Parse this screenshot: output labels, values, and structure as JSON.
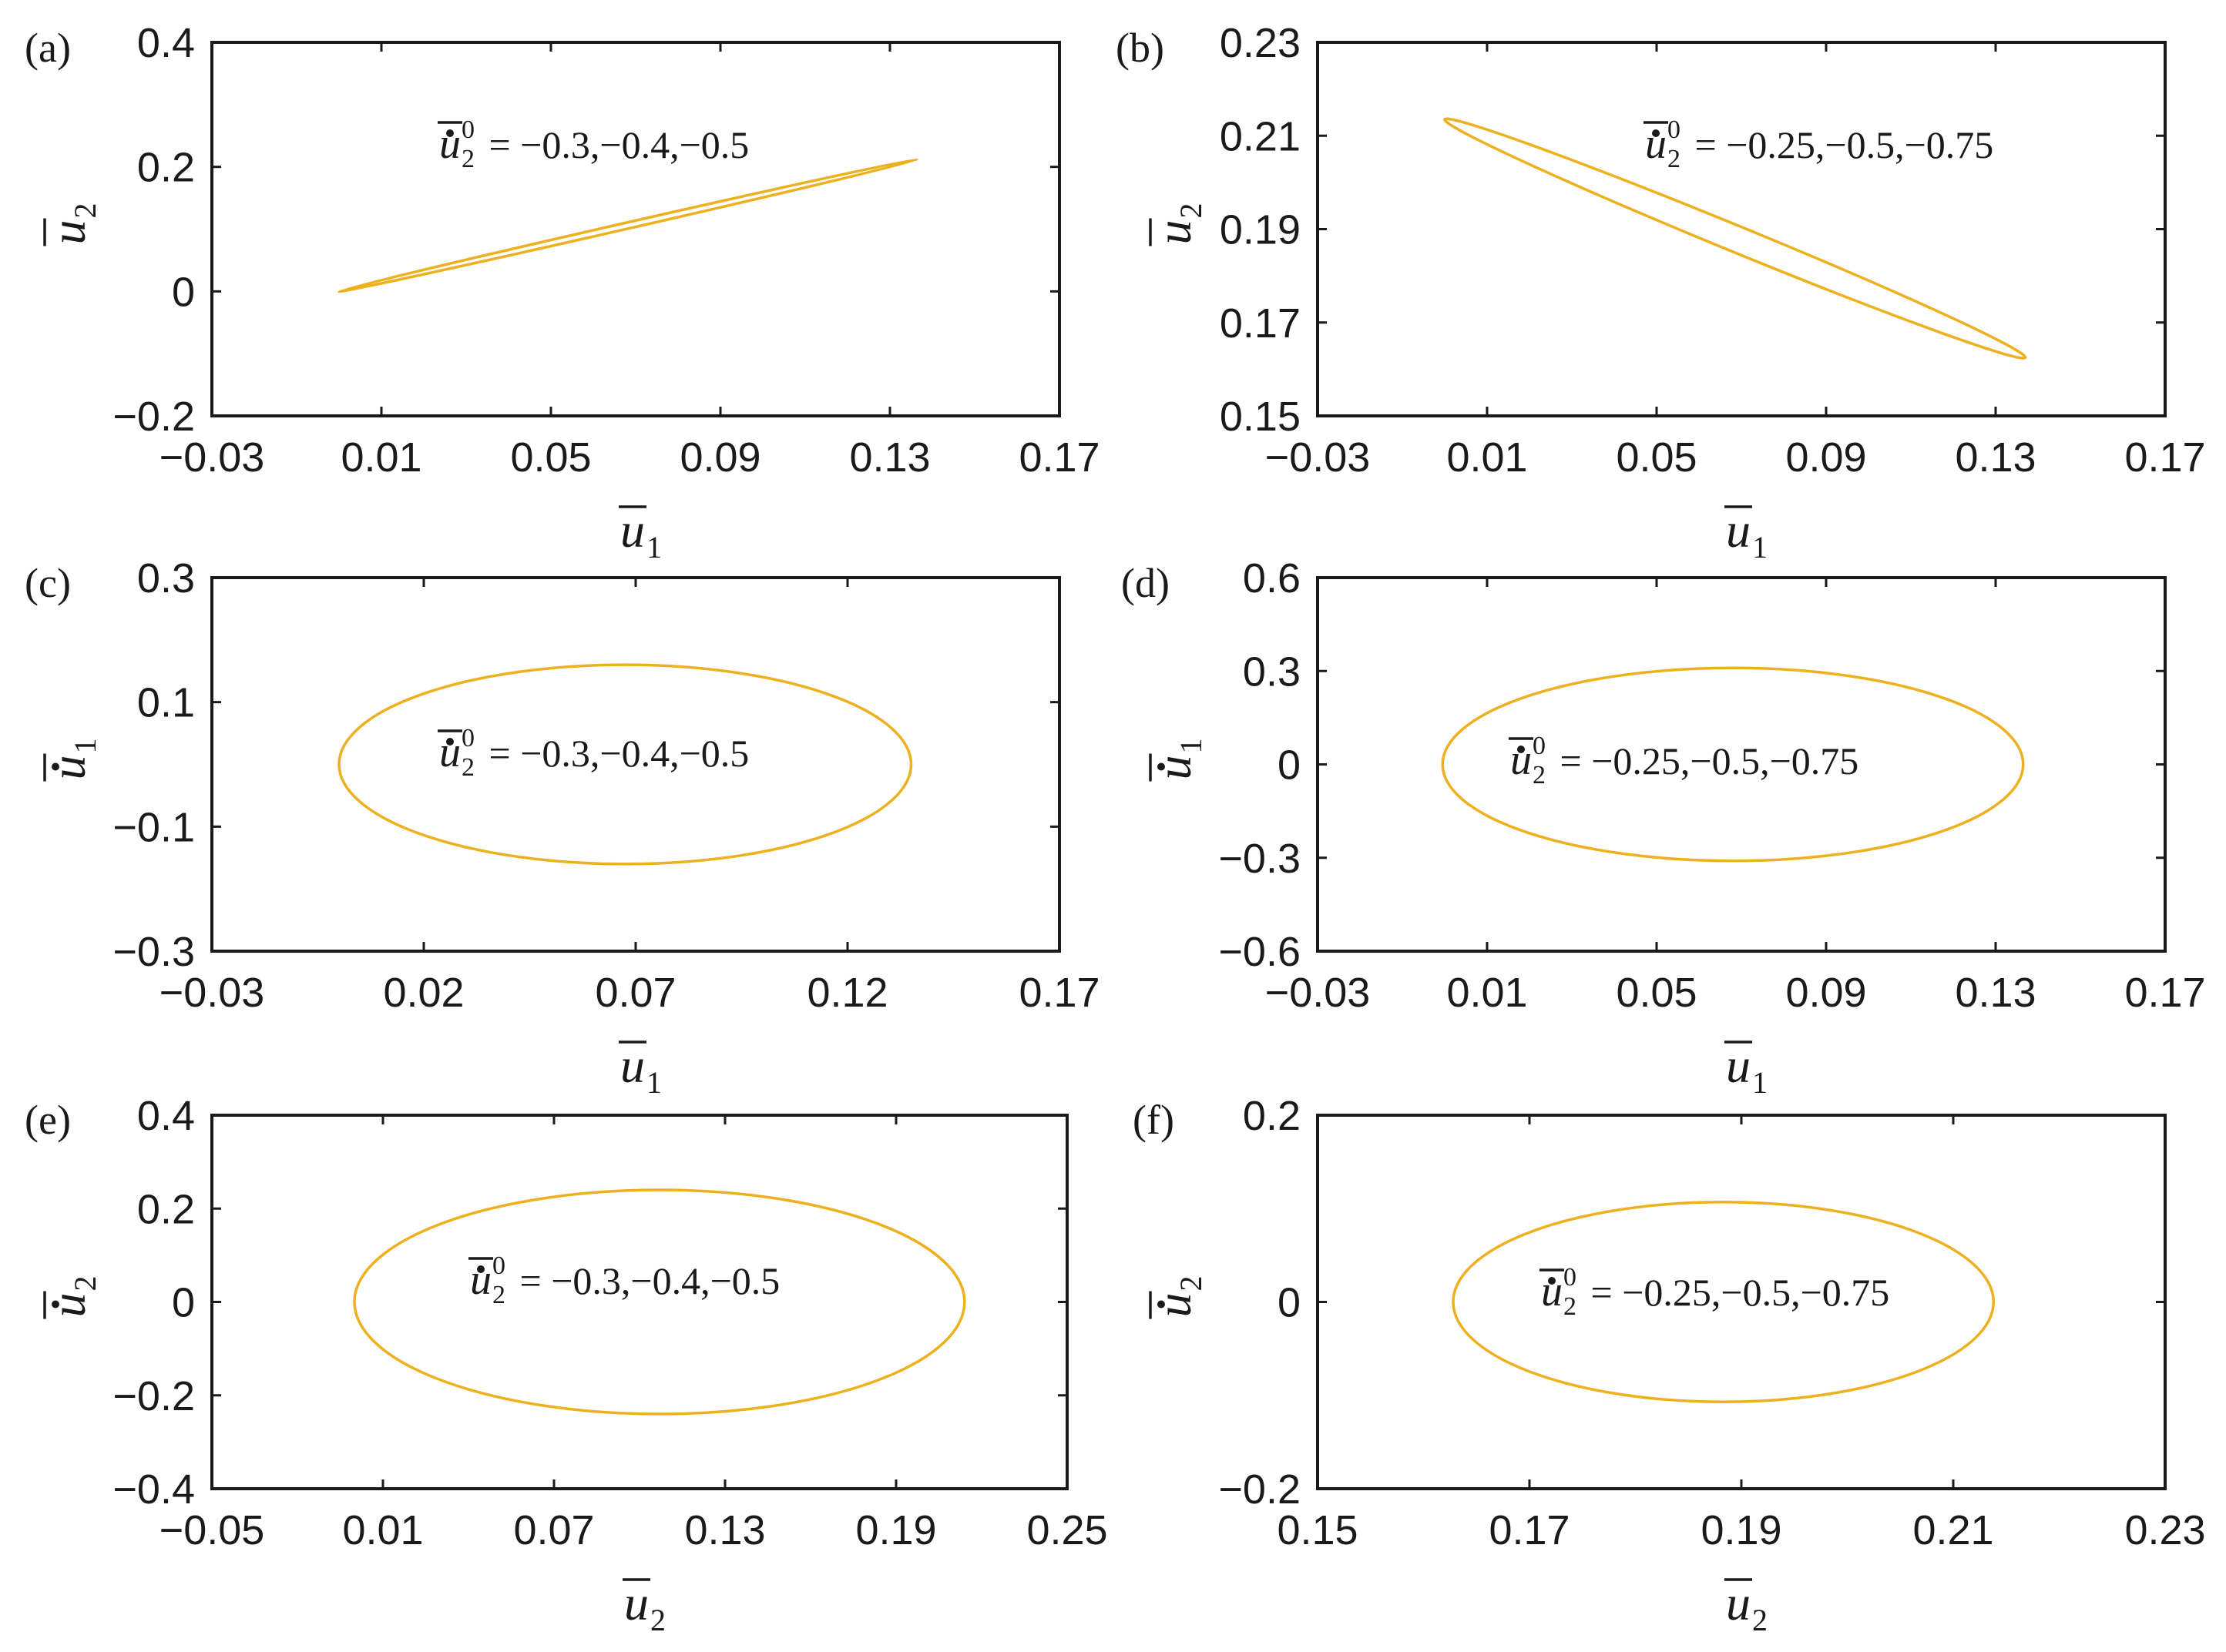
{
  "figure": {
    "series_color": "#EDB120"
  },
  "chart_data": [
    {
      "panel": "(a)",
      "type": "line",
      "xlabel": {
        "symbol": "u",
        "sub": "1",
        "dot": false
      },
      "ylabel": {
        "symbol": "u",
        "sub": "2",
        "dot": false
      },
      "xlim": [
        -0.03,
        0.17
      ],
      "ylim": [
        -0.2,
        0.4
      ],
      "xticks": [
        -0.03,
        0.01,
        0.05,
        0.09,
        0.13,
        0.17
      ],
      "xtick_labels": [
        "−0.03",
        "0.01",
        "0.05",
        "0.09",
        "0.13",
        "0.17"
      ],
      "yticks": [
        -0.2,
        0,
        0.2,
        0.4
      ],
      "ytick_labels": [
        "−0.2",
        "0",
        "0.2",
        "0.4"
      ],
      "annotation": {
        "symbol": "u",
        "sub": "2",
        "sup": "0",
        "text": " = −0.3,−0.4,−0.5"
      },
      "curve": {
        "shape": "thin-ellipse",
        "point_a": [
          0.0,
          0.0
        ],
        "point_b": [
          0.1365,
          0.212
        ],
        "half_width": 0.0035
      }
    },
    {
      "panel": "(b)",
      "type": "line",
      "xlabel": {
        "symbol": "u",
        "sub": "1",
        "dot": false
      },
      "ylabel": {
        "symbol": "u",
        "sub": "2",
        "dot": false
      },
      "xlim": [
        -0.03,
        0.17
      ],
      "ylim": [
        0.15,
        0.23
      ],
      "xticks": [
        -0.03,
        0.01,
        0.05,
        0.09,
        0.13,
        0.17
      ],
      "xtick_labels": [
        "−0.03",
        "0.01",
        "0.05",
        "0.09",
        "0.13",
        "0.17"
      ],
      "yticks": [
        0.15,
        0.17,
        0.19,
        0.21,
        0.23
      ],
      "ytick_labels": [
        "0.15",
        "0.17",
        "0.19",
        "0.21",
        "0.23"
      ],
      "annotation": {
        "symbol": "u",
        "sub": "2",
        "sup": "0",
        "text": " = −0.25,−0.5,−0.75"
      },
      "curve": {
        "shape": "thin-ellipse",
        "point_a": [
          0.0,
          0.2135
        ],
        "point_b": [
          0.137,
          0.1625
        ],
        "half_width": 0.0028
      }
    },
    {
      "panel": "(c)",
      "type": "line",
      "xlabel": {
        "symbol": "u",
        "sub": "1",
        "dot": false
      },
      "ylabel": {
        "symbol": "u",
        "sub": "1",
        "dot": true
      },
      "xlim": [
        -0.03,
        0.17
      ],
      "ylim": [
        -0.3,
        0.3
      ],
      "xticks": [
        -0.03,
        0.02,
        0.07,
        0.12,
        0.17
      ],
      "xtick_labels": [
        "−0.03",
        "0.02",
        "0.07",
        "0.12",
        "0.17"
      ],
      "yticks": [
        -0.3,
        -0.1,
        0.1,
        0.3
      ],
      "ytick_labels": [
        "−0.3",
        "−0.1",
        "0.1",
        "0.3"
      ],
      "annotation": {
        "symbol": "u",
        "sub": "2",
        "sup": "0",
        "text": " = −0.3,−0.4,−0.5"
      },
      "curve": {
        "shape": "ellipse",
        "center": [
          0.0675,
          0.0
        ],
        "radius_x": 0.0675,
        "radius_y": 0.16
      }
    },
    {
      "panel": "(d)",
      "type": "line",
      "xlabel": {
        "symbol": "u",
        "sub": "1",
        "dot": false
      },
      "ylabel": {
        "symbol": "u",
        "sub": "1",
        "dot": true
      },
      "xlim": [
        -0.03,
        0.17
      ],
      "ylim": [
        -0.6,
        0.6
      ],
      "xticks": [
        -0.03,
        0.01,
        0.05,
        0.09,
        0.13,
        0.17
      ],
      "xtick_labels": [
        "−0.03",
        "0.01",
        "0.05",
        "0.09",
        "0.13",
        "0.17"
      ],
      "yticks": [
        -0.6,
        -0.3,
        0,
        0.3,
        0.6
      ],
      "ytick_labels": [
        "−0.6",
        "−0.3",
        "0",
        "0.3",
        "0.6"
      ],
      "annotation": {
        "symbol": "u",
        "sub": "2",
        "sup": "0",
        "text": " = −0.25,−0.5,−0.75"
      },
      "curve": {
        "shape": "ellipse",
        "center": [
          0.068,
          0.0
        ],
        "radius_x": 0.0685,
        "radius_y": 0.31
      }
    },
    {
      "panel": "(e)",
      "type": "line",
      "xlabel": {
        "symbol": "u",
        "sub": "2",
        "dot": false
      },
      "ylabel": {
        "symbol": "u",
        "sub": "2",
        "dot": true
      },
      "xlim": [
        -0.05,
        0.25
      ],
      "ylim": [
        -0.4,
        0.4
      ],
      "xticks": [
        -0.05,
        0.01,
        0.07,
        0.13,
        0.19,
        0.25
      ],
      "xtick_labels": [
        "−0.05",
        "0.01",
        "0.07",
        "0.13",
        "0.19",
        "0.25"
      ],
      "yticks": [
        -0.4,
        -0.2,
        0,
        0.2,
        0.4
      ],
      "ytick_labels": [
        "−0.4",
        "−0.2",
        "0",
        "0.2",
        "0.4"
      ],
      "annotation": {
        "symbol": "u",
        "sub": "2",
        "sup": "0",
        "text": " = −0.3,−0.4,−0.5"
      },
      "curve": {
        "shape": "ellipse",
        "center": [
          0.107,
          0.0
        ],
        "radius_x": 0.107,
        "radius_y": 0.24
      }
    },
    {
      "panel": "(f)",
      "type": "line",
      "xlabel": {
        "symbol": "u",
        "sub": "2",
        "dot": false
      },
      "ylabel": {
        "symbol": "u",
        "sub": "2",
        "dot": true
      },
      "xlim": [
        0.15,
        0.23
      ],
      "ylim": [
        -0.2,
        0.2
      ],
      "xticks": [
        0.15,
        0.17,
        0.19,
        0.21,
        0.23
      ],
      "xtick_labels": [
        "0.15",
        "0.17",
        "0.19",
        "0.21",
        "0.23"
      ],
      "yticks": [
        -0.2,
        0,
        0.2
      ],
      "ytick_labels": [
        "−0.2",
        "0",
        "0.2"
      ],
      "annotation": {
        "symbol": "u",
        "sub": "2",
        "sup": "0",
        "text": " = −0.25,−0.5,−0.75"
      },
      "curve": {
        "shape": "ellipse",
        "center": [
          0.1883,
          0.0
        ],
        "radius_x": 0.0255,
        "radius_y": 0.107
      }
    }
  ]
}
